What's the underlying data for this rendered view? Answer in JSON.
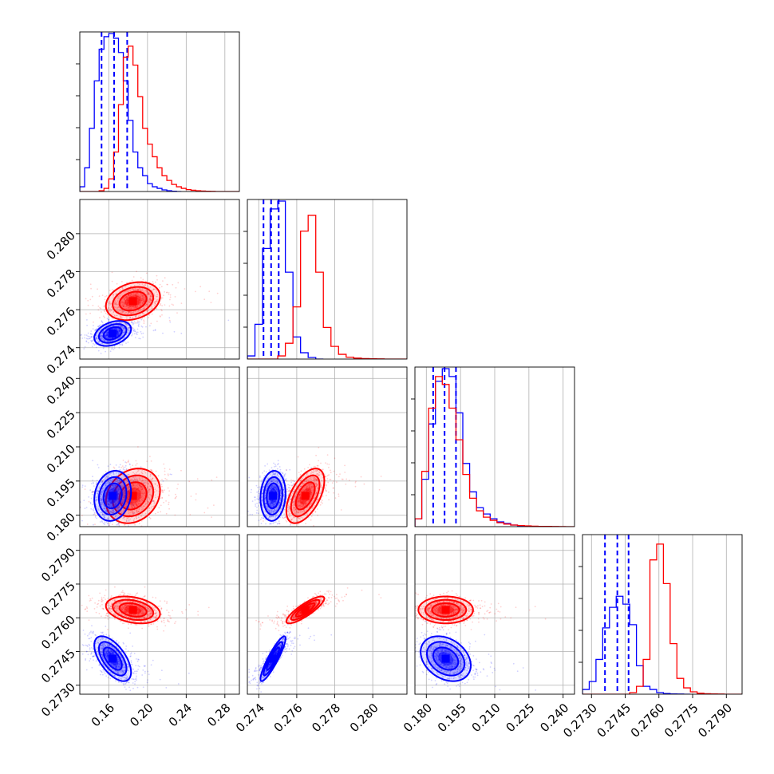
{
  "chart_data": {
    "type": "corner",
    "title": "",
    "grid": true,
    "legend": "none",
    "series": [
      {
        "key": "blue",
        "color": "#0000ff",
        "quantiles": [
          [
            0.1525,
            0.1655,
            0.179
          ],
          [
            0.27425,
            0.27465,
            0.27505
          ],
          [
            0.183,
            0.188,
            0.193
          ],
          [
            0.2736,
            0.27415,
            0.27465
          ]
        ]
      },
      {
        "key": "red",
        "color": "#ff0000",
        "quantiles": null
      }
    ],
    "parameters": [
      {
        "range": [
          0.13,
          0.295
        ],
        "ticks": [
          0.16,
          0.2,
          0.24,
          0.28
        ],
        "tick_labels": [
          "0.16",
          "0.20",
          "0.24",
          "0.28"
        ]
      },
      {
        "range": [
          0.2734,
          0.2818
        ],
        "ticks": [
          0.274,
          0.276,
          0.278,
          0.28
        ],
        "tick_labels": [
          "0.274",
          "0.276",
          "0.278",
          "0.280"
        ]
      },
      {
        "range": [
          0.175,
          0.245
        ],
        "ticks": [
          0.18,
          0.195,
          0.21,
          0.225,
          0.24
        ],
        "tick_labels": [
          "0.180",
          "0.195",
          "0.210",
          "0.225",
          "0.240"
        ]
      },
      {
        "range": [
          0.2726,
          0.2797
        ],
        "ticks": [
          0.273,
          0.2745,
          0.276,
          0.2775,
          0.279
        ],
        "tick_labels": [
          "0.2730",
          "0.2745",
          "0.2760",
          "0.2775",
          "0.2790"
        ]
      }
    ],
    "histograms": {
      "blue": [
        {
          "x": [
            0.13,
            0.135,
            0.14,
            0.145,
            0.15,
            0.155,
            0.16,
            0.165,
            0.17,
            0.175,
            0.18,
            0.185,
            0.19,
            0.195,
            0.2,
            0.205,
            0.21,
            0.215,
            0.22,
            0.225,
            0.23
          ],
          "h": [
            0.03,
            0.15,
            0.4,
            0.7,
            0.9,
            0.98,
            1.0,
            0.97,
            0.88,
            0.7,
            0.45,
            0.25,
            0.15,
            0.1,
            0.05,
            0.03,
            0.02,
            0.01,
            0.005,
            0.002,
            0.0
          ]
        },
        {
          "x": [
            0.2734,
            0.2738,
            0.2742,
            0.2746,
            0.275,
            0.2754,
            0.2758,
            0.2762,
            0.2766,
            0.277
          ],
          "h": [
            0.02,
            0.22,
            0.7,
            0.95,
            1.0,
            0.55,
            0.14,
            0.04,
            0.01,
            0.0
          ]
        },
        {
          "x": [
            0.175,
            0.178,
            0.181,
            0.184,
            0.187,
            0.19,
            0.193,
            0.196,
            0.199,
            0.202,
            0.205,
            0.208,
            0.211,
            0.214,
            0.217,
            0.22,
            0.223,
            0.226
          ],
          "h": [
            0.05,
            0.3,
            0.65,
            0.92,
            1.0,
            0.95,
            0.72,
            0.4,
            0.22,
            0.12,
            0.08,
            0.05,
            0.03,
            0.02,
            0.01,
            0.005,
            0.003,
            0.0
          ]
        },
        {
          "x": [
            0.2726,
            0.2729,
            0.2732,
            0.2735,
            0.2738,
            0.2741,
            0.2744,
            0.2747,
            0.275,
            0.2753,
            0.2756,
            0.2759,
            0.2762,
            0.2765,
            0.2768,
            0.2771
          ],
          "h": [
            0.03,
            0.08,
            0.22,
            0.42,
            0.55,
            0.62,
            0.57,
            0.44,
            0.18,
            0.05,
            0.03,
            0.01,
            0.004,
            0.002,
            0.001,
            0.0
          ]
        }
      ],
      "red": [
        {
          "x": [
            0.13,
            0.135,
            0.14,
            0.145,
            0.15,
            0.155,
            0.16,
            0.165,
            0.17,
            0.175,
            0.18,
            0.185,
            0.19,
            0.195,
            0.2,
            0.205,
            0.21,
            0.215,
            0.22,
            0.225,
            0.23,
            0.235,
            0.24,
            0.245,
            0.25,
            0.255,
            0.26,
            0.265,
            0.27,
            0.275,
            0.28,
            0.285,
            0.29
          ],
          "h": [
            0.0,
            0.0,
            0.0,
            0.0,
            0.005,
            0.02,
            0.08,
            0.25,
            0.55,
            0.85,
            0.92,
            0.8,
            0.6,
            0.4,
            0.3,
            0.22,
            0.15,
            0.1,
            0.07,
            0.045,
            0.03,
            0.02,
            0.012,
            0.008,
            0.005,
            0.003,
            0.002,
            0.001,
            0.0,
            0.0,
            0.0,
            0.0,
            0.0
          ]
        },
        {
          "x": [
            0.2734,
            0.2738,
            0.2742,
            0.2746,
            0.275,
            0.2754,
            0.2758,
            0.2762,
            0.2766,
            0.277,
            0.2774,
            0.2778,
            0.2782,
            0.2786,
            0.279,
            0.2794,
            0.2798,
            0.2802,
            0.2806,
            0.281,
            0.2814
          ],
          "h": [
            0.0,
            0.0,
            0.0,
            0.0,
            0.02,
            0.1,
            0.33,
            0.81,
            0.91,
            0.55,
            0.2,
            0.08,
            0.03,
            0.012,
            0.006,
            0.003,
            0.002,
            0.001,
            0.0,
            0.0,
            0.0
          ]
        },
        {
          "x": [
            0.175,
            0.178,
            0.181,
            0.184,
            0.187,
            0.19,
            0.193,
            0.196,
            0.199,
            0.202,
            0.205,
            0.208,
            0.211,
            0.214,
            0.217,
            0.22,
            0.223,
            0.226,
            0.229,
            0.232,
            0.235,
            0.238,
            0.241,
            0.244
          ],
          "h": [
            0.05,
            0.35,
            0.75,
            0.95,
            0.9,
            0.75,
            0.55,
            0.33,
            0.18,
            0.1,
            0.06,
            0.04,
            0.025,
            0.016,
            0.01,
            0.007,
            0.005,
            0.003,
            0.002,
            0.0015,
            0.001,
            0.0005,
            0.0,
            0.0
          ]
        },
        {
          "x": [
            0.2726,
            0.2729,
            0.2732,
            0.2735,
            0.2738,
            0.2741,
            0.2744,
            0.2747,
            0.275,
            0.2753,
            0.2756,
            0.2759,
            0.2762,
            0.2765,
            0.2768,
            0.2771,
            0.2774,
            0.2777,
            0.278,
            0.2783,
            0.2786,
            0.2789,
            0.2792,
            0.2795
          ],
          "h": [
            0.0,
            0.0,
            0.0,
            0.0,
            0.0,
            0.0,
            0.0,
            0.01,
            0.05,
            0.22,
            0.85,
            0.95,
            0.7,
            0.32,
            0.1,
            0.04,
            0.015,
            0.006,
            0.003,
            0.002,
            0.001,
            0.0,
            0.0,
            0.0
          ]
        }
      ]
    },
    "pairs": [
      {
        "row": 1,
        "col": 0,
        "blue": {
          "mean": [
            0.164,
            0.27475
          ],
          "sd": [
            0.0095,
            0.00033
          ],
          "rho": 0.35
        },
        "red": {
          "mean": [
            0.185,
            0.27645
          ],
          "sd": [
            0.014,
            0.0005
          ],
          "rho": 0.25
        }
      },
      {
        "row": 2,
        "col": 0,
        "blue": {
          "mean": [
            0.164,
            0.1885
          ],
          "sd": [
            0.0095,
            0.0055
          ],
          "rho": 0.15
        },
        "red": {
          "mean": [
            0.185,
            0.1885
          ],
          "sd": [
            0.014,
            0.006
          ],
          "rho": 0.2
        }
      },
      {
        "row": 2,
        "col": 1,
        "blue": {
          "mean": [
            0.27475,
            0.1885
          ],
          "sd": [
            0.00033,
            0.0055
          ],
          "rho": 0.1
        },
        "red": {
          "mean": [
            0.27645,
            0.1885
          ],
          "sd": [
            0.0005,
            0.006
          ],
          "rho": 0.55
        }
      },
      {
        "row": 3,
        "col": 0,
        "blue": {
          "mean": [
            0.164,
            0.27418
          ],
          "sd": [
            0.0095,
            0.0005
          ],
          "rho": -0.6
        },
        "red": {
          "mean": [
            0.185,
            0.27635
          ],
          "sd": [
            0.014,
            0.0003
          ],
          "rho": -0.3
        }
      },
      {
        "row": 3,
        "col": 1,
        "blue": {
          "mean": [
            0.27475,
            0.27418
          ],
          "sd": [
            0.00033,
            0.0005
          ],
          "rho": 0.9
        },
        "red": {
          "mean": [
            0.27645,
            0.27635
          ],
          "sd": [
            0.0005,
            0.0003
          ],
          "rho": 0.85
        }
      },
      {
        "row": 3,
        "col": 2,
        "blue": {
          "mean": [
            0.1885,
            0.27418
          ],
          "sd": [
            0.0055,
            0.0005
          ],
          "rho": -0.3
        },
        "red": {
          "mean": [
            0.1885,
            0.27635
          ],
          "sd": [
            0.006,
            0.0003
          ],
          "rho": 0.0
        }
      }
    ]
  }
}
